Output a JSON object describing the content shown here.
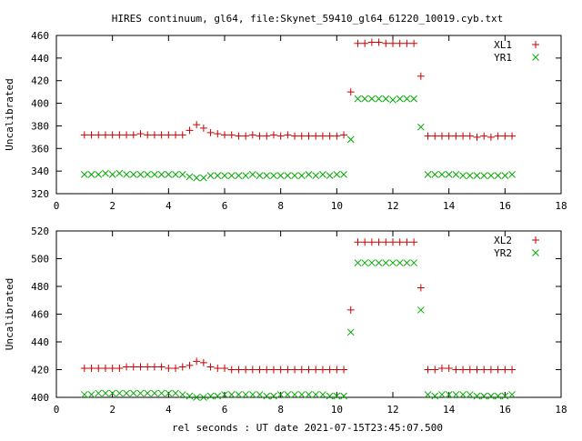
{
  "title": "HIRES continuum, gl64, file:Skynet_59410_gl64_61220_10019.cyb.txt",
  "xlabel": "rel seconds : UT date 2021-07-15T23:45:07.500",
  "colors": {
    "series_1": "#cc0000",
    "series_2": "#00aa00"
  },
  "chart_data": [
    {
      "type": "scatter",
      "ylabel": "Uncalibrated",
      "xlim": [
        0,
        18
      ],
      "ylim": [
        320,
        460
      ],
      "xticks": [
        0,
        2,
        4,
        6,
        8,
        10,
        12,
        14,
        16,
        18
      ],
      "yticks": [
        320,
        340,
        360,
        380,
        400,
        420,
        440,
        460
      ],
      "legend_position": "top-right",
      "grid": false,
      "series": [
        {
          "name": "XL1",
          "marker": "plus",
          "x": [
            1.0,
            1.25,
            1.5,
            1.75,
            2.0,
            2.25,
            2.5,
            2.75,
            3.0,
            3.25,
            3.5,
            3.75,
            4.0,
            4.25,
            4.5,
            4.75,
            5.0,
            5.25,
            5.5,
            5.75,
            6.0,
            6.25,
            6.5,
            6.75,
            7.0,
            7.25,
            7.5,
            7.75,
            8.0,
            8.25,
            8.5,
            8.75,
            9.0,
            9.25,
            9.5,
            9.75,
            10.0,
            10.25,
            10.5,
            10.75,
            11.0,
            11.25,
            11.5,
            11.75,
            12.0,
            12.25,
            12.5,
            12.75,
            13.0,
            13.25,
            13.5,
            13.75,
            14.0,
            14.25,
            14.5,
            14.75,
            15.0,
            15.25,
            15.5,
            15.75,
            16.0,
            16.25
          ],
          "y": [
            372,
            372,
            372,
            372,
            372,
            372,
            372,
            372,
            373,
            372,
            372,
            372,
            372,
            372,
            372,
            376,
            381,
            378,
            374,
            373,
            372,
            372,
            371,
            371,
            372,
            371,
            371,
            372,
            371,
            372,
            371,
            371,
            371,
            371,
            371,
            371,
            371,
            372,
            410,
            453,
            453,
            454,
            454,
            453,
            453,
            453,
            453,
            453,
            424,
            371,
            371,
            371,
            371,
            371,
            371,
            371,
            370,
            371,
            370,
            371,
            371,
            371
          ]
        },
        {
          "name": "YR1",
          "marker": "cross",
          "x": [
            1.0,
            1.25,
            1.5,
            1.75,
            2.0,
            2.25,
            2.5,
            2.75,
            3.0,
            3.25,
            3.5,
            3.75,
            4.0,
            4.25,
            4.5,
            4.75,
            5.0,
            5.25,
            5.5,
            5.75,
            6.0,
            6.25,
            6.5,
            6.75,
            7.0,
            7.25,
            7.5,
            7.75,
            8.0,
            8.25,
            8.5,
            8.75,
            9.0,
            9.25,
            9.5,
            9.75,
            10.0,
            10.25,
            10.5,
            10.75,
            11.0,
            11.25,
            11.5,
            11.75,
            12.0,
            12.25,
            12.5,
            12.75,
            13.0,
            13.25,
            13.5,
            13.75,
            14.0,
            14.25,
            14.5,
            14.75,
            15.0,
            15.25,
            15.5,
            15.75,
            16.0,
            16.25
          ],
          "y": [
            337,
            337,
            337,
            338,
            337,
            338,
            337,
            337,
            337,
            337,
            337,
            337,
            337,
            337,
            337,
            335,
            334,
            334,
            336,
            336,
            336,
            336,
            336,
            336,
            337,
            336,
            336,
            336,
            336,
            336,
            336,
            336,
            337,
            336,
            337,
            336,
            337,
            337,
            368,
            404,
            404,
            404,
            404,
            404,
            403,
            404,
            404,
            404,
            379,
            337,
            337,
            337,
            337,
            337,
            336,
            336,
            336,
            336,
            336,
            336,
            336,
            337
          ]
        }
      ]
    },
    {
      "type": "scatter",
      "ylabel": "Uncalibrated",
      "xlim": [
        0,
        18
      ],
      "ylim": [
        400,
        520
      ],
      "xticks": [
        0,
        2,
        4,
        6,
        8,
        10,
        12,
        14,
        16,
        18
      ],
      "yticks": [
        400,
        420,
        440,
        460,
        480,
        500,
        520
      ],
      "legend_position": "top-right",
      "grid": false,
      "series": [
        {
          "name": "XL2",
          "marker": "plus",
          "x": [
            1.0,
            1.25,
            1.5,
            1.75,
            2.0,
            2.25,
            2.5,
            2.75,
            3.0,
            3.25,
            3.5,
            3.75,
            4.0,
            4.25,
            4.5,
            4.75,
            5.0,
            5.25,
            5.5,
            5.75,
            6.0,
            6.25,
            6.5,
            6.75,
            7.0,
            7.25,
            7.5,
            7.75,
            8.0,
            8.25,
            8.5,
            8.75,
            9.0,
            9.25,
            9.5,
            9.75,
            10.0,
            10.25,
            10.5,
            10.75,
            11.0,
            11.25,
            11.5,
            11.75,
            12.0,
            12.25,
            12.5,
            12.75,
            13.0,
            13.25,
            13.5,
            13.75,
            14.0,
            14.25,
            14.5,
            14.75,
            15.0,
            15.25,
            15.5,
            15.75,
            16.0,
            16.25
          ],
          "y": [
            421,
            421,
            421,
            421,
            421,
            421,
            422,
            422,
            422,
            422,
            422,
            422,
            421,
            421,
            422,
            423,
            426,
            425,
            422,
            421,
            421,
            420,
            420,
            420,
            420,
            420,
            420,
            420,
            420,
            420,
            420,
            420,
            420,
            420,
            420,
            420,
            420,
            420,
            463,
            512,
            512,
            512,
            512,
            512,
            512,
            512,
            512,
            512,
            479,
            420,
            420,
            421,
            421,
            420,
            420,
            420,
            420,
            420,
            420,
            420,
            420,
            420
          ]
        },
        {
          "name": "YR2",
          "marker": "cross",
          "x": [
            1.0,
            1.25,
            1.5,
            1.75,
            2.0,
            2.25,
            2.5,
            2.75,
            3.0,
            3.25,
            3.5,
            3.75,
            4.0,
            4.25,
            4.5,
            4.75,
            5.0,
            5.25,
            5.5,
            5.75,
            6.0,
            6.25,
            6.5,
            6.75,
            7.0,
            7.25,
            7.5,
            7.75,
            8.0,
            8.25,
            8.5,
            8.75,
            9.0,
            9.25,
            9.5,
            9.75,
            10.0,
            10.25,
            10.5,
            10.75,
            11.0,
            11.25,
            11.5,
            11.75,
            12.0,
            12.25,
            12.5,
            12.75,
            13.0,
            13.25,
            13.5,
            13.75,
            14.0,
            14.25,
            14.5,
            14.75,
            15.0,
            15.25,
            15.5,
            15.75,
            16.0,
            16.25
          ],
          "y": [
            402,
            402,
            403,
            403,
            403,
            403,
            403,
            403,
            403,
            403,
            403,
            403,
            403,
            403,
            402,
            401,
            400,
            400,
            401,
            401,
            402,
            402,
            402,
            402,
            402,
            402,
            401,
            401,
            402,
            402,
            402,
            402,
            402,
            402,
            402,
            401,
            401,
            401,
            447,
            497,
            497,
            497,
            497,
            497,
            497,
            497,
            497,
            497,
            463,
            402,
            401,
            402,
            402,
            402,
            402,
            402,
            401,
            401,
            401,
            401,
            401,
            402
          ]
        }
      ]
    }
  ]
}
